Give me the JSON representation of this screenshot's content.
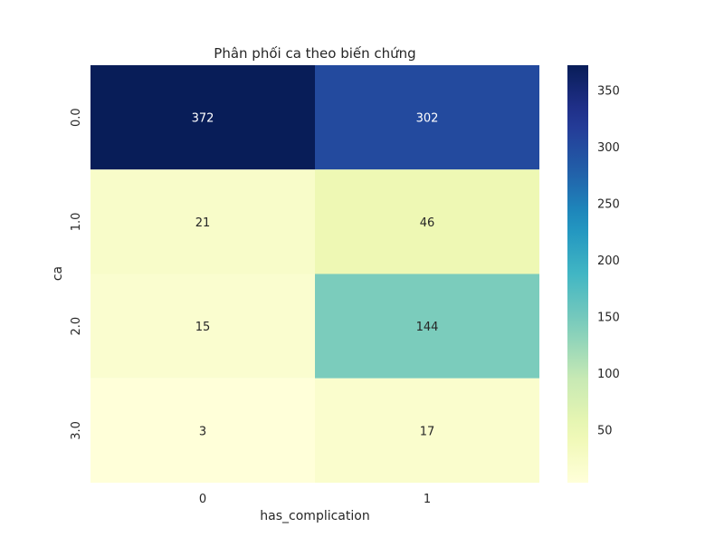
{
  "chart_data": {
    "type": "heatmap",
    "title": "Phân phối ca theo biến chứng",
    "xlabel": "has_complication",
    "ylabel": "ca",
    "x_categories": [
      "0",
      "1"
    ],
    "y_categories": [
      "0.0",
      "1.0",
      "2.0",
      "3.0"
    ],
    "values": [
      [
        372,
        302
      ],
      [
        21,
        46
      ],
      [
        15,
        144
      ],
      [
        3,
        17
      ]
    ],
    "colormap": "YlGnBu",
    "vmin": 3,
    "vmax": 372,
    "colorbar_ticks": [
      50,
      100,
      150,
      200,
      250,
      300,
      350
    ],
    "grid": false
  }
}
